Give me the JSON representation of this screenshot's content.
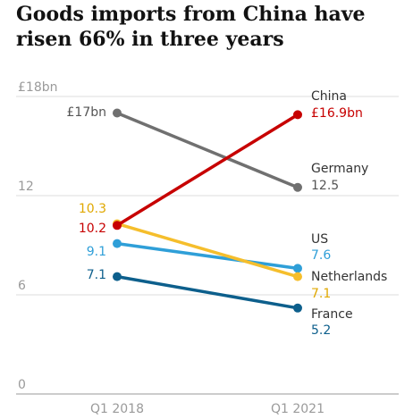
{
  "chart_data": {
    "type": "line",
    "title": "Goods imports from China have risen 66% in three years",
    "x": [
      "Q1 2018",
      "Q1 2021"
    ],
    "y_ticks": [
      "0",
      "6",
      "12",
      "£18bn"
    ],
    "ylim": [
      0,
      18
    ],
    "grid": true,
    "series": [
      {
        "name": "China",
        "values": [
          10.2,
          16.9
        ],
        "start_label": "10.2",
        "end_label": "£16.9bn",
        "color": "#c70000"
      },
      {
        "name": "Germany",
        "values": [
          17,
          12.5
        ],
        "start_label": "£17bn",
        "end_label": "12.5",
        "color": "#707070"
      },
      {
        "name": "US",
        "values": [
          9.1,
          7.6
        ],
        "start_label": "9.1",
        "end_label": "7.6",
        "color": "#2f9fd8"
      },
      {
        "name": "Netherlands",
        "values": [
          10.3,
          7.1
        ],
        "start_label": "10.3",
        "end_label": "7.1",
        "color": "#f5be2c"
      },
      {
        "name": "France",
        "values": [
          7.1,
          5.2
        ],
        "start_label": "7.1",
        "end_label": "5.2",
        "color": "#0d5f8c"
      }
    ]
  }
}
